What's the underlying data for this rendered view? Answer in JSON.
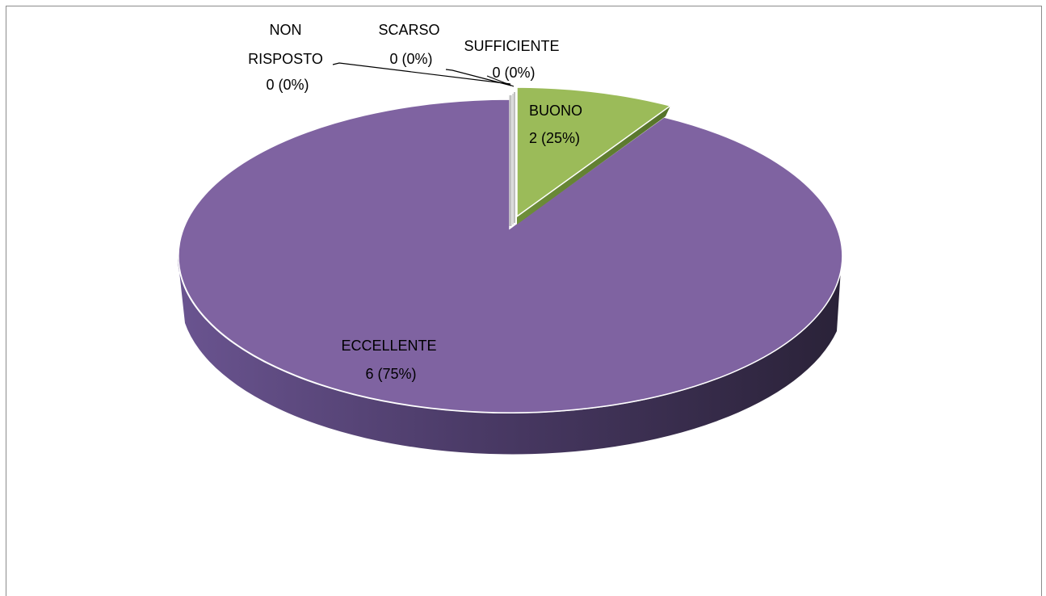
{
  "chart_data": {
    "type": "pie",
    "title": "",
    "categories": [
      "NON RISPOSTO",
      "SCARSO",
      "SUFFICIENTE",
      "BUONO",
      "ECCELLENTE"
    ],
    "values": [
      0,
      0,
      0,
      2,
      6
    ],
    "percent_labels": [
      "0%",
      "0%",
      "0%",
      "25%",
      "75%"
    ],
    "data_labels": [
      {
        "lines": [
          "NON",
          "RISPOSTO",
          "0 (0%)"
        ]
      },
      {
        "lines": [
          "SCARSO",
          "0 (0%)"
        ]
      },
      {
        "lines": [
          "SUFFICIENTE",
          "0 (0%)"
        ]
      },
      {
        "lines": [
          "BUONO",
          "2 (25%)"
        ]
      },
      {
        "lines": [
          "ECCELLENTE",
          "6 (75%)"
        ]
      }
    ],
    "colors": [
      "#4f81bd",
      "#c0504d",
      "#d9d9d9",
      "#9bbb59",
      "#8064a2"
    ],
    "style": "3d-exploded",
    "legend": "none"
  }
}
